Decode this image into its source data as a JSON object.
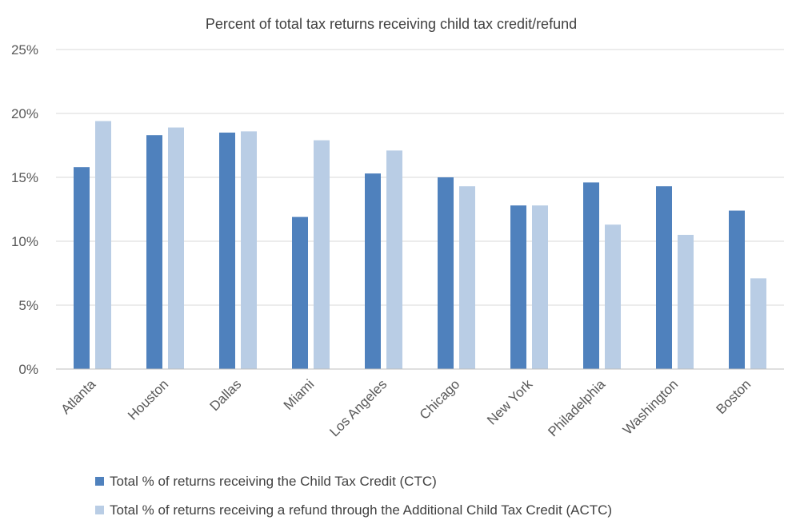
{
  "chart_data": {
    "type": "bar",
    "title": "Percent of total tax returns receiving child tax credit/refund",
    "xlabel": "",
    "ylabel": "",
    "ylim": [
      0,
      25
    ],
    "yticks": [
      "0%",
      "5%",
      "10%",
      "15%",
      "20%",
      "25%"
    ],
    "ytick_values": [
      0,
      5,
      10,
      15,
      20,
      25
    ],
    "grid": true,
    "legend_position": "bottom",
    "categories": [
      "Atlanta",
      "Houston",
      "Dallas",
      "Miami",
      "Los Angeles",
      "Chicago",
      "New York",
      "Philadelphia",
      "Washington",
      "Boston"
    ],
    "series": [
      {
        "name": "Total % of returns receiving the Child Tax Credit (CTC)",
        "color": "#4f81bd",
        "values": [
          15.8,
          18.3,
          18.5,
          11.9,
          15.3,
          15.0,
          12.8,
          14.6,
          14.3,
          12.4
        ]
      },
      {
        "name": "Total % of returns receiving a refund through the Additional Child Tax Credit (ACTC)",
        "color": "#b9cde5",
        "values": [
          19.4,
          18.9,
          18.6,
          17.9,
          17.1,
          14.3,
          12.8,
          11.3,
          10.5,
          7.1
        ]
      }
    ]
  }
}
